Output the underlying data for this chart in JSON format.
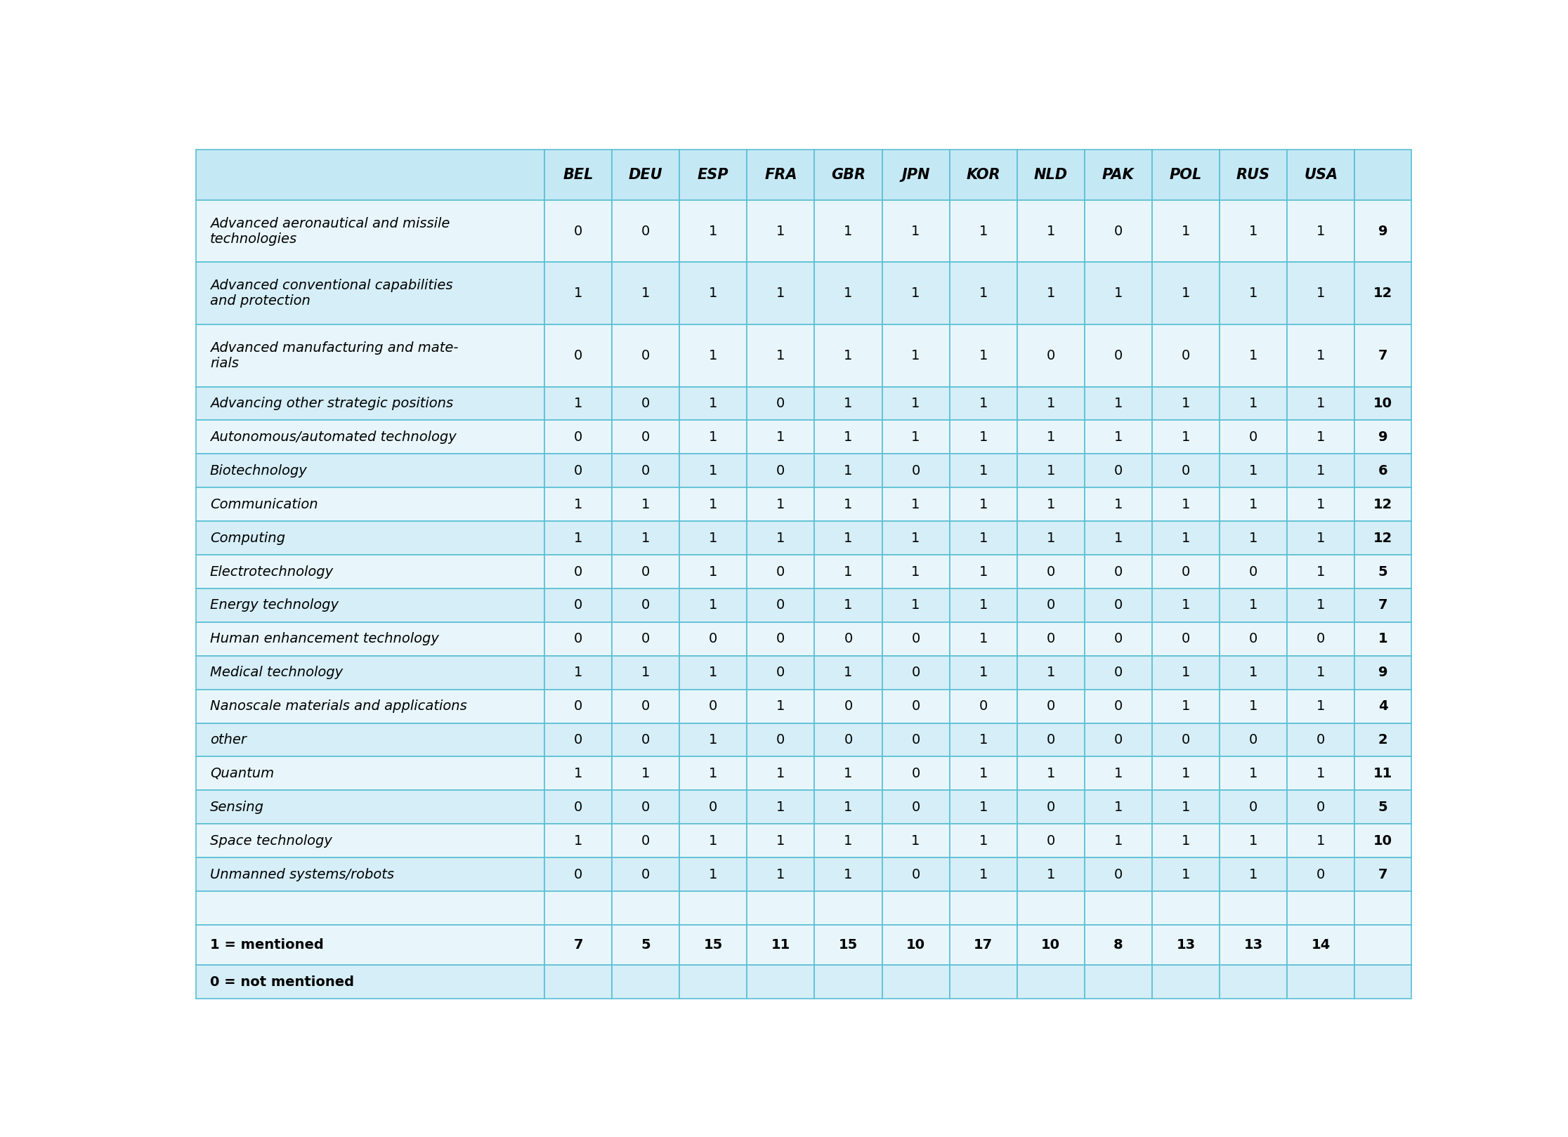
{
  "columns": [
    "",
    "BEL",
    "DEU",
    "ESP",
    "FRA",
    "GBR",
    "JPN",
    "KOR",
    "NLD",
    "PAK",
    "POL",
    "RUS",
    "USA",
    ""
  ],
  "rows": [
    [
      "Advanced aeronautical and missile\ntechnologies",
      "0",
      "0",
      "1",
      "1",
      "1",
      "1",
      "1",
      "1",
      "0",
      "1",
      "1",
      "1",
      "9"
    ],
    [
      "Advanced conventional capabilities\nand protection",
      "1",
      "1",
      "1",
      "1",
      "1",
      "1",
      "1",
      "1",
      "1",
      "1",
      "1",
      "1",
      "12"
    ],
    [
      "Advanced manufacturing and mate-\nrials",
      "0",
      "0",
      "1",
      "1",
      "1",
      "1",
      "1",
      "0",
      "0",
      "0",
      "1",
      "1",
      "7"
    ],
    [
      "Advancing other strategic positions",
      "1",
      "0",
      "1",
      "0",
      "1",
      "1",
      "1",
      "1",
      "1",
      "1",
      "1",
      "1",
      "10"
    ],
    [
      "Autonomous/automated technology",
      "0",
      "0",
      "1",
      "1",
      "1",
      "1",
      "1",
      "1",
      "1",
      "1",
      "0",
      "1",
      "9"
    ],
    [
      "Biotechnology",
      "0",
      "0",
      "1",
      "0",
      "1",
      "0",
      "1",
      "1",
      "0",
      "0",
      "1",
      "1",
      "6"
    ],
    [
      "Communication",
      "1",
      "1",
      "1",
      "1",
      "1",
      "1",
      "1",
      "1",
      "1",
      "1",
      "1",
      "1",
      "12"
    ],
    [
      "Computing",
      "1",
      "1",
      "1",
      "1",
      "1",
      "1",
      "1",
      "1",
      "1",
      "1",
      "1",
      "1",
      "12"
    ],
    [
      "Electrotechnology",
      "0",
      "0",
      "1",
      "0",
      "1",
      "1",
      "1",
      "0",
      "0",
      "0",
      "0",
      "1",
      "5"
    ],
    [
      "Energy technology",
      "0",
      "0",
      "1",
      "0",
      "1",
      "1",
      "1",
      "0",
      "0",
      "1",
      "1",
      "1",
      "7"
    ],
    [
      "Human enhancement technology",
      "0",
      "0",
      "0",
      "0",
      "0",
      "0",
      "1",
      "0",
      "0",
      "0",
      "0",
      "0",
      "1"
    ],
    [
      "Medical technology",
      "1",
      "1",
      "1",
      "0",
      "1",
      "0",
      "1",
      "1",
      "0",
      "1",
      "1",
      "1",
      "9"
    ],
    [
      "Nanoscale materials and applications",
      "0",
      "0",
      "0",
      "1",
      "0",
      "0",
      "0",
      "0",
      "0",
      "1",
      "1",
      "1",
      "4"
    ],
    [
      "other",
      "0",
      "0",
      "1",
      "0",
      "0",
      "0",
      "1",
      "0",
      "0",
      "0",
      "0",
      "0",
      "2"
    ],
    [
      "Quantum",
      "1",
      "1",
      "1",
      "1",
      "1",
      "0",
      "1",
      "1",
      "1",
      "1",
      "1",
      "1",
      "11"
    ],
    [
      "Sensing",
      "0",
      "0",
      "0",
      "1",
      "1",
      "0",
      "1",
      "0",
      "1",
      "1",
      "0",
      "0",
      "5"
    ],
    [
      "Space technology",
      "1",
      "0",
      "1",
      "1",
      "1",
      "1",
      "1",
      "0",
      "1",
      "1",
      "1",
      "1",
      "10"
    ],
    [
      "Unmanned systems/robots",
      "0",
      "0",
      "1",
      "1",
      "1",
      "0",
      "1",
      "1",
      "0",
      "1",
      "1",
      "0",
      "7"
    ]
  ],
  "totals_row": [
    "1 = mentioned",
    "7",
    "5",
    "15",
    "11",
    "15",
    "10",
    "17",
    "10",
    "8",
    "13",
    "13",
    "14",
    ""
  ],
  "legend_row": [
    "0 = not mentioned",
    "",
    "",
    "",
    "",
    "",
    "",
    "",
    "",
    "",
    "",
    "",
    "",
    ""
  ],
  "header_bg": "#c5e8f5",
  "row_bg_light": "#e8f6fb",
  "row_bg_dark": "#d5eef7",
  "border_color": "#5bbfd4",
  "data_font_size": 14,
  "header_font_size": 15,
  "row_label_font_size": 14,
  "total_font_size": 14,
  "col_widths_rel": [
    3.2,
    0.62,
    0.62,
    0.62,
    0.62,
    0.62,
    0.62,
    0.62,
    0.62,
    0.62,
    0.62,
    0.62,
    0.62,
    0.52
  ]
}
